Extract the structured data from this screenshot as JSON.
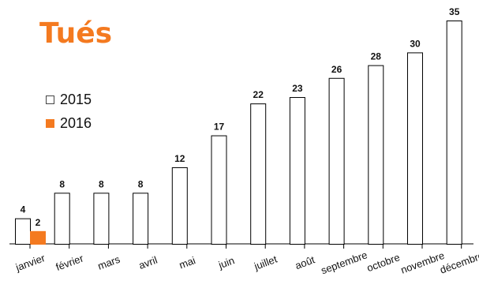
{
  "chart_data": {
    "type": "bar",
    "title": "Tués",
    "categories": [
      "janvier",
      "février",
      "mars",
      "avril",
      "mai",
      "juin",
      "juillet",
      "août",
      "septembre",
      "octobre",
      "novembre",
      "décembre"
    ],
    "series": [
      {
        "name": "2015",
        "values": [
          4,
          8,
          8,
          8,
          12,
          17,
          22,
          23,
          26,
          28,
          30,
          35
        ],
        "color": "#ffffff",
        "stroke": "#000000"
      },
      {
        "name": "2016",
        "values": [
          2,
          null,
          null,
          null,
          null,
          null,
          null,
          null,
          null,
          null,
          null,
          null
        ],
        "color": "#f47a20",
        "stroke": "#f47a20"
      }
    ],
    "ylim": [
      0,
      35
    ],
    "grid": false,
    "legend_position": "top-left",
    "title_color": "#f47a20"
  }
}
